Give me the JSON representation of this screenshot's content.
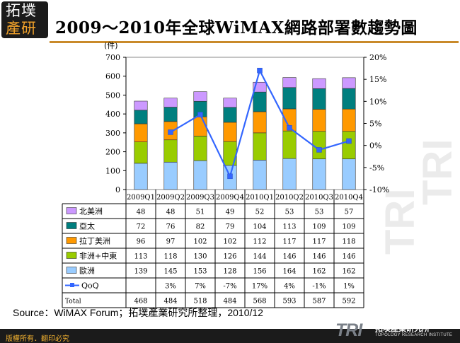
{
  "logo": {
    "line1": "拓墣",
    "line2": "產研"
  },
  "title": "2009～2010年全球WiMAX網路部署數趨勢圖",
  "source": "Source：WiMAX Forum；拓墣產業研究所整理，2010/12",
  "footer": {
    "copyright": "版權所有．翻印必究",
    "brand": "TRI",
    "brand_name": "拓墣產業研究所",
    "brand_sub": "TOPOLOGY RESEARCH INSTITUTE"
  },
  "watermark": [
    "TRI",
    "TRI"
  ],
  "chart_data": {
    "type": "bar",
    "stacked": true,
    "title": "2009～2010年全球WiMAX網路部署數趨勢圖",
    "ylabel": "(件)",
    "ylim": [
      0,
      700
    ],
    "yticks": [
      0,
      100,
      200,
      300,
      400,
      500,
      600,
      700
    ],
    "y2lim": [
      -10,
      20
    ],
    "y2ticks": [
      "20%",
      "15%",
      "10%",
      "5%",
      "0%",
      "-5%",
      "-10%"
    ],
    "categories": [
      "2009Q1",
      "2009Q2",
      "2009Q3",
      "2009Q4",
      "2010Q1",
      "2010Q2",
      "2010Q3",
      "2010Q4"
    ],
    "series": [
      {
        "name": "北美洲",
        "color": "#cc99ff",
        "values": [
          48,
          48,
          51,
          49,
          52,
          53,
          53,
          57
        ]
      },
      {
        "name": "亞太",
        "color": "#007f7f",
        "values": [
          72,
          76,
          82,
          79,
          104,
          113,
          109,
          109
        ]
      },
      {
        "name": "拉丁美洲",
        "color": "#ff9900",
        "values": [
          96,
          97,
          102,
          102,
          112,
          117,
          117,
          118
        ]
      },
      {
        "name": "非洲+中東",
        "color": "#99cc00",
        "values": [
          113,
          118,
          130,
          126,
          144,
          146,
          146,
          146
        ]
      },
      {
        "name": "歐洲",
        "color": "#99ccff",
        "values": [
          139,
          145,
          153,
          128,
          156,
          164,
          162,
          162
        ]
      }
    ],
    "qoq": {
      "name": "QoQ",
      "color": "#3366ff",
      "values": [
        null,
        3,
        7,
        -7,
        17,
        4,
        -1,
        1
      ],
      "labels": [
        "",
        "3%",
        "7%",
        "-7%",
        "17%",
        "4%",
        "-1%",
        "1%"
      ]
    },
    "total": {
      "name": "Total",
      "values": [
        468,
        484,
        518,
        484,
        568,
        593,
        587,
        592
      ]
    }
  }
}
